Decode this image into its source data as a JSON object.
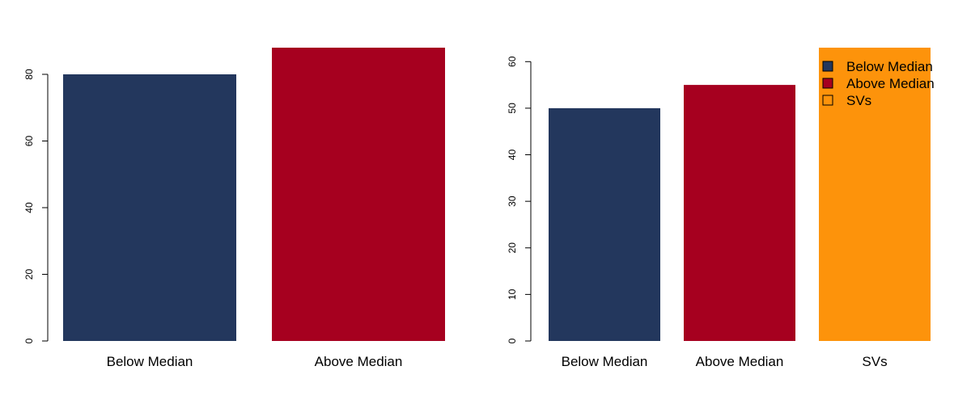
{
  "chart_data": [
    {
      "type": "bar",
      "categories": [
        "Below Median",
        "Above Median"
      ],
      "values": [
        80,
        88
      ],
      "colors": [
        "#23375d",
        "#a6001f"
      ],
      "ylim": [
        0,
        88
      ],
      "yticks": [
        "0",
        "20",
        "40",
        "60",
        "80"
      ],
      "title": "",
      "xlabel": "",
      "ylabel": "",
      "grid": false,
      "legend": null
    },
    {
      "type": "bar",
      "categories": [
        "Below Median",
        "Above Median",
        "SVs"
      ],
      "values": [
        50,
        55,
        63
      ],
      "colors": [
        "#23375d",
        "#a6001f",
        "#fd930b"
      ],
      "ylim": [
        0,
        63
      ],
      "yticks": [
        "0",
        "10",
        "20",
        "30",
        "40",
        "50",
        "60"
      ],
      "title": "",
      "xlabel": "",
      "ylabel": "",
      "grid": false,
      "legend": {
        "placement": "top-right",
        "entries": [
          {
            "label": "Below Median",
            "fill": "#23375d"
          },
          {
            "label": "Above Median",
            "fill": "#a6001f"
          },
          {
            "label": "SVs",
            "fill": "none"
          }
        ]
      }
    }
  ]
}
